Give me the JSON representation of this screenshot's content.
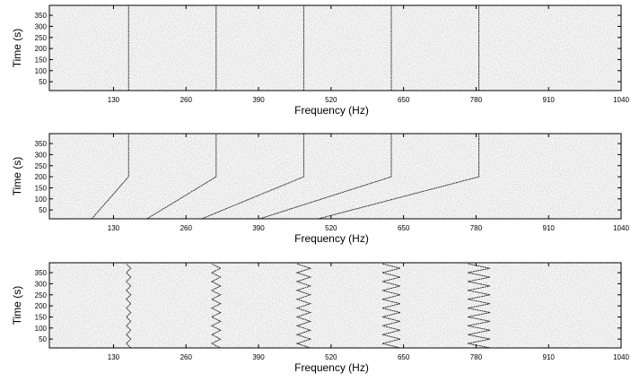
{
  "chart_data": [
    {
      "type": "spectrogram",
      "xlabel": "Frequency (Hz)",
      "ylabel": "Time (s)",
      "xlim": [
        15,
        1040
      ],
      "ylim": [
        10,
        395
      ],
      "xticks": [
        130,
        260,
        390,
        520,
        650,
        780,
        910,
        1040
      ],
      "yticks": [
        50,
        100,
        150,
        200,
        250,
        300,
        350
      ],
      "series": [
        {
          "color": "#222222",
          "x": [
            157,
            157
          ],
          "y": [
            10,
            395
          ]
        },
        {
          "color": "#222222",
          "x": [
            314,
            314
          ],
          "y": [
            10,
            395
          ]
        },
        {
          "color": "#222222",
          "x": [
            471,
            471
          ],
          "y": [
            10,
            395
          ]
        },
        {
          "color": "#222222",
          "x": [
            628,
            628
          ],
          "y": [
            10,
            395
          ]
        },
        {
          "color": "#222222",
          "x": [
            785,
            785
          ],
          "y": [
            10,
            395
          ]
        }
      ]
    },
    {
      "type": "spectrogram",
      "xlabel": "Frequency (Hz)",
      "ylabel": "Time (s)",
      "xlim": [
        15,
        1040
      ],
      "ylim": [
        10,
        395
      ],
      "xticks": [
        130,
        260,
        390,
        520,
        650,
        780,
        910,
        1040
      ],
      "yticks": [
        50,
        100,
        150,
        200,
        250,
        300,
        350
      ],
      "series": [
        {
          "color": "#222222",
          "x": [
            91,
            157,
            157
          ],
          "y": [
            10,
            200,
            395
          ]
        },
        {
          "color": "#222222",
          "x": [
            190,
            314,
            314
          ],
          "y": [
            10,
            200,
            395
          ]
        },
        {
          "color": "#222222",
          "x": [
            288,
            471,
            471
          ],
          "y": [
            10,
            200,
            395
          ]
        },
        {
          "color": "#222222",
          "x": [
            392,
            628,
            628
          ],
          "y": [
            10,
            200,
            395
          ]
        },
        {
          "color": "#222222",
          "x": [
            497,
            785,
            785
          ],
          "y": [
            10,
            200,
            395
          ]
        }
      ]
    },
    {
      "type": "spectrogram",
      "xlabel": "Frequency (Hz)",
      "ylabel": "Time (s)",
      "xlim": [
        15,
        1040
      ],
      "ylim": [
        10,
        395
      ],
      "xticks": [
        130,
        260,
        390,
        520,
        650,
        780,
        910,
        1040
      ],
      "yticks": [
        50,
        100,
        150,
        200,
        250,
        300,
        350
      ],
      "series": [
        {
          "color": "#222222",
          "x": [
            161,
            153,
            161,
            153,
            161,
            153,
            161,
            153,
            161,
            153,
            161,
            153,
            161,
            153,
            161,
            153,
            161,
            153,
            161,
            153
          ],
          "y": [
            10,
            30,
            50,
            70,
            90,
            110,
            130,
            150,
            170,
            190,
            210,
            230,
            250,
            270,
            290,
            310,
            330,
            350,
            370,
            390
          ]
        },
        {
          "color": "#222222",
          "x": [
            322,
            306,
            322,
            306,
            322,
            306,
            322,
            306,
            322,
            306,
            322,
            306,
            322,
            306,
            322,
            306,
            322,
            306,
            322,
            306
          ],
          "y": [
            10,
            30,
            50,
            70,
            90,
            110,
            130,
            150,
            170,
            190,
            210,
            230,
            250,
            270,
            290,
            310,
            330,
            350,
            370,
            390
          ]
        },
        {
          "color": "#222222",
          "x": [
            483,
            459,
            483,
            459,
            483,
            459,
            483,
            459,
            483,
            459,
            483,
            459,
            483,
            459,
            483,
            459,
            483,
            459,
            483,
            459
          ],
          "y": [
            10,
            30,
            50,
            70,
            90,
            110,
            130,
            150,
            170,
            190,
            210,
            230,
            250,
            270,
            290,
            310,
            330,
            350,
            370,
            390
          ]
        },
        {
          "color": "#222222",
          "x": [
            644,
            612,
            644,
            612,
            644,
            612,
            644,
            612,
            644,
            612,
            644,
            612,
            644,
            612,
            644,
            612,
            644,
            612,
            644,
            612
          ],
          "y": [
            10,
            30,
            50,
            70,
            90,
            110,
            130,
            150,
            170,
            190,
            210,
            230,
            250,
            270,
            290,
            310,
            330,
            350,
            370,
            390
          ]
        },
        {
          "color": "#222222",
          "x": [
            805,
            765,
            805,
            765,
            805,
            765,
            805,
            765,
            805,
            765,
            805,
            765,
            805,
            765,
            805,
            765,
            805,
            765,
            805,
            765
          ],
          "y": [
            10,
            30,
            50,
            70,
            90,
            110,
            130,
            150,
            170,
            190,
            210,
            230,
            250,
            270,
            290,
            310,
            330,
            350,
            370,
            390
          ]
        }
      ]
    }
  ]
}
